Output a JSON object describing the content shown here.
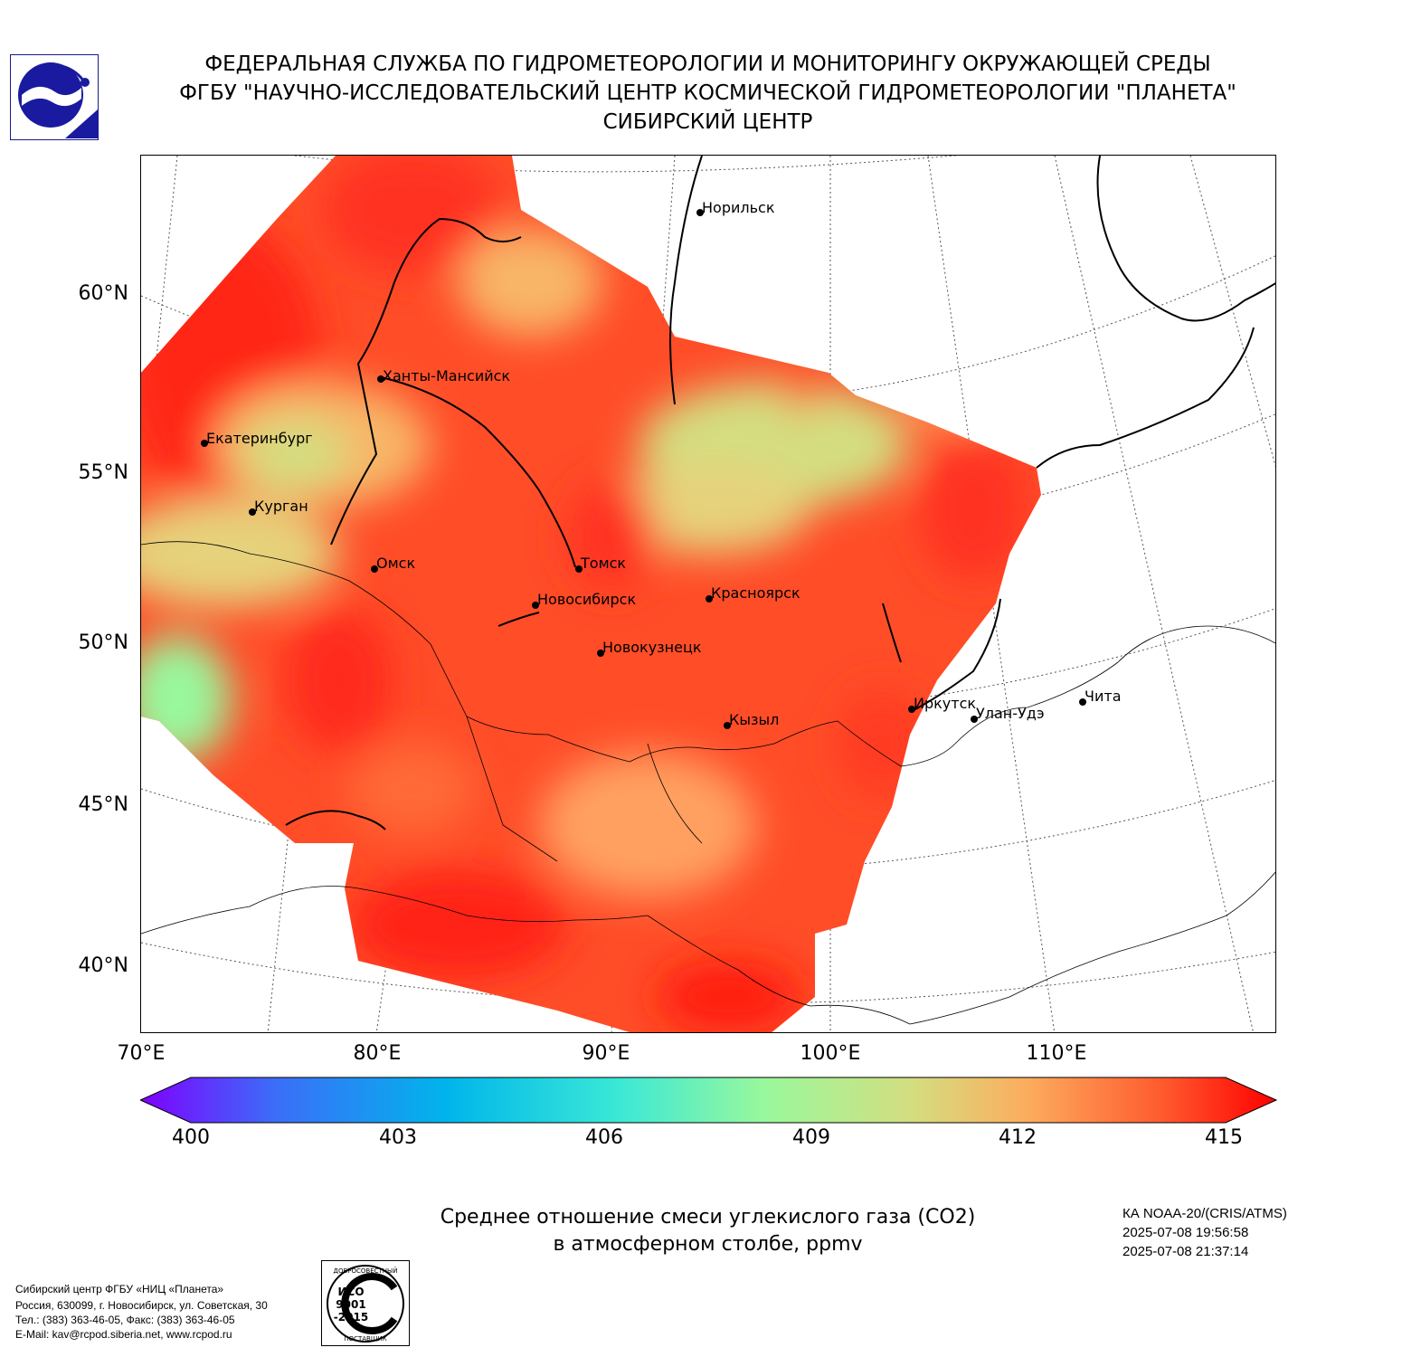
{
  "header": {
    "line1": "ФЕДЕРАЛЬНАЯ СЛУЖБА ПО ГИДРОМЕТЕОРОЛОГИИ И МОНИТОРИНГУ ОКРУЖАЮЩЕЙ СРЕДЫ",
    "line2": "ФГБУ \"НАУЧНО-ИССЛЕДОВАТЕЛЬСКИЙ ЦЕНТР КОСМИЧЕСКОЙ ГИДРОМЕТЕОРОЛОГИИ \"ПЛАНЕТА\"",
    "line3": "СИБИРСКИЙ ЦЕНТР"
  },
  "map": {
    "lat_labels": [
      "60°N",
      "55°N",
      "50°N",
      "45°N",
      "40°N"
    ],
    "lon_labels": [
      "70°E",
      "80°E",
      "90°E",
      "100°E",
      "110°E"
    ],
    "cities": [
      {
        "name": "Норильск"
      },
      {
        "name": "Ханты-Мансийск"
      },
      {
        "name": "Екатеринбург"
      },
      {
        "name": "Курган"
      },
      {
        "name": "Омск"
      },
      {
        "name": "Томск"
      },
      {
        "name": "Новосибирск"
      },
      {
        "name": "Красноярск"
      },
      {
        "name": "Новокузнецк"
      },
      {
        "name": "Иркутск"
      },
      {
        "name": "Улан-Удэ"
      },
      {
        "name": "Чита"
      },
      {
        "name": "Кызыл"
      }
    ]
  },
  "colorbar": {
    "ticks": [
      "400",
      "403",
      "406",
      "409",
      "412",
      "415"
    ],
    "min": 400,
    "max": 415,
    "colors": [
      "#7f00ff",
      "#3b6ef8",
      "#00b5eb",
      "#3ae8d6",
      "#99f89c",
      "#d4dd80",
      "#fcad5e",
      "#ff5a2e",
      "#ff0000"
    ]
  },
  "caption": {
    "line1": "Среднее отношение смеси углекислого газа (CO2)",
    "line2": "в атмосферном столбе, ppmv"
  },
  "satellite": {
    "name": "КА NOAA-20/(CRIS/ATMS)",
    "start": "2025-07-08 19:56:58",
    "end": "2025-07-08 21:37:14"
  },
  "footer": {
    "line1": "Сибирский центр ФГБУ «НИЦ «Планета»",
    "line2": "Россия, 630099, г. Новосибирск, ул. Советская, 30",
    "line3": "Тел.: (383) 363-46-05, Факс: (383) 363-46-05",
    "line4": "E-Mail: kav@rcpod.siberia.net, www.rcpod.ru"
  },
  "iso_badge": {
    "top_text": "ДОБРОСОВЕСТНЫЙ",
    "line1": "ИСО",
    "line2": "9001",
    "line3": "-2015",
    "bottom_text": "ПОСТАВЩИК"
  }
}
